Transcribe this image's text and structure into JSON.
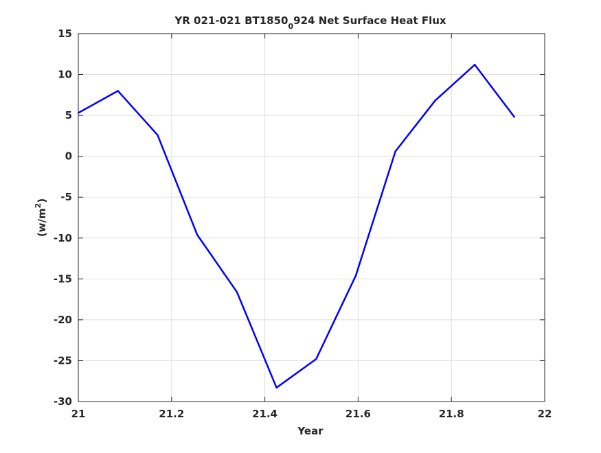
{
  "chart_data": {
    "type": "line",
    "title_main": "YR 021-021 BT1850",
    "title_sub": "0",
    "title_rest": "924 Net Surface Heat Flux",
    "xlabel": "Year",
    "ylabel_main": "(w/m",
    "ylabel_sup": "2",
    "ylabel_end": ")",
    "xlim": [
      21,
      22
    ],
    "ylim": [
      -30,
      15
    ],
    "grid": true,
    "x_ticks": [
      21,
      21.2,
      21.4,
      21.6,
      21.8,
      22
    ],
    "x_tick_labels": [
      "21",
      "21.2",
      "21.4",
      "21.6",
      "21.8",
      "22"
    ],
    "y_ticks": [
      15,
      10,
      5,
      0,
      -5,
      -10,
      -15,
      -20,
      -25,
      -30
    ],
    "y_tick_labels": [
      "15",
      "10",
      "5",
      "0",
      "-5",
      "-10",
      "-15",
      "-20",
      "-25",
      "-30"
    ],
    "series": [
      {
        "color": "#0000ff",
        "x": [
          21.0,
          21.085,
          21.17,
          21.255,
          21.34,
          21.425,
          21.51,
          21.595,
          21.68,
          21.765,
          21.85,
          21.935
        ],
        "values": [
          5.3,
          8.0,
          2.6,
          -9.6,
          -16.6,
          -28.3,
          -24.8,
          -14.6,
          0.6,
          6.8,
          11.2,
          4.8
        ]
      }
    ]
  }
}
